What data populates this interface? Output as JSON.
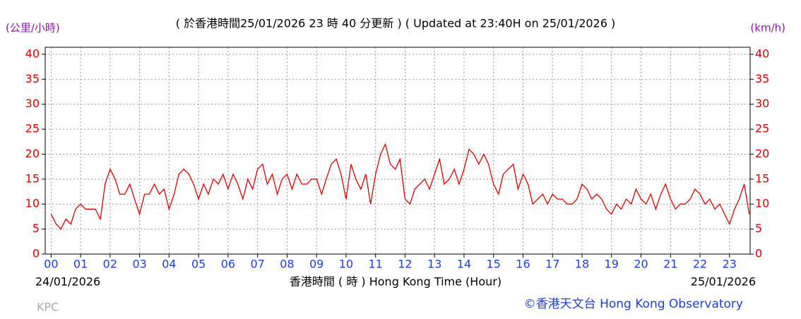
{
  "chart_data": {
    "type": "line",
    "title": "( 於香港時間25/01/2026 23 時 40 分更新 ) ( Updated at 23:40H on 25/01/2026 )",
    "y_label": "(公里/小時)",
    "y2_label": "(km/h)",
    "x_label": "香港時間 ( 時 )  Hong Kong Time (Hour)",
    "start_date": "24/01/2026",
    "end_date": "25/01/2026",
    "station": "KPC",
    "credit": "©香港天文台 Hong Kong Observatory",
    "color": "#dd0000",
    "grid": true,
    "xlim": [
      -0.2,
      23.7
    ],
    "ylim": [
      0,
      41.4
    ],
    "xticks": [
      {
        "value": 0,
        "label": "00"
      },
      {
        "value": 1,
        "label": "01"
      },
      {
        "value": 2,
        "label": "02"
      },
      {
        "value": 3,
        "label": "03"
      },
      {
        "value": 4,
        "label": "04"
      },
      {
        "value": 5,
        "label": "05"
      },
      {
        "value": 6,
        "label": "06"
      },
      {
        "value": 7,
        "label": "07"
      },
      {
        "value": 8,
        "label": "08"
      },
      {
        "value": 9,
        "label": "09"
      },
      {
        "value": 10,
        "label": "10"
      },
      {
        "value": 11,
        "label": "11"
      },
      {
        "value": 12,
        "label": "12"
      },
      {
        "value": 13,
        "label": "13"
      },
      {
        "value": 14,
        "label": "14"
      },
      {
        "value": 15,
        "label": "15"
      },
      {
        "value": 16,
        "label": "16"
      },
      {
        "value": 17,
        "label": "17"
      },
      {
        "value": 18,
        "label": "18"
      },
      {
        "value": 19,
        "label": "19"
      },
      {
        "value": 20,
        "label": "20"
      },
      {
        "value": 21,
        "label": "21"
      },
      {
        "value": 22,
        "label": "22"
      },
      {
        "value": 23,
        "label": "23"
      }
    ],
    "yticks": [
      0,
      5,
      10,
      15,
      20,
      25,
      30,
      35,
      40
    ],
    "x": [
      0,
      0.17,
      0.33,
      0.5,
      0.67,
      0.83,
      1,
      1.17,
      1.33,
      1.5,
      1.67,
      1.83,
      2,
      2.17,
      2.33,
      2.5,
      2.67,
      2.83,
      3,
      3.17,
      3.33,
      3.5,
      3.67,
      3.83,
      4,
      4.17,
      4.33,
      4.5,
      4.67,
      4.83,
      5,
      5.17,
      5.33,
      5.5,
      5.67,
      5.83,
      6,
      6.17,
      6.33,
      6.5,
      6.67,
      6.83,
      7,
      7.17,
      7.33,
      7.5,
      7.67,
      7.83,
      8,
      8.17,
      8.33,
      8.5,
      8.67,
      8.83,
      9,
      9.17,
      9.33,
      9.5,
      9.67,
      9.83,
      10,
      10.17,
      10.33,
      10.5,
      10.67,
      10.83,
      11,
      11.17,
      11.33,
      11.5,
      11.67,
      11.83,
      12,
      12.17,
      12.33,
      12.5,
      12.67,
      12.83,
      13,
      13.17,
      13.33,
      13.5,
      13.67,
      13.83,
      14,
      14.17,
      14.33,
      14.5,
      14.67,
      14.83,
      15,
      15.17,
      15.33,
      15.5,
      15.67,
      15.83,
      16,
      16.17,
      16.33,
      16.5,
      16.67,
      16.83,
      17,
      17.17,
      17.33,
      17.5,
      17.67,
      17.83,
      18,
      18.17,
      18.33,
      18.5,
      18.67,
      18.83,
      19,
      19.17,
      19.33,
      19.5,
      19.67,
      19.83,
      20,
      20.17,
      20.33,
      20.5,
      20.67,
      20.83,
      21,
      21.17,
      21.33,
      21.5,
      21.67,
      21.83,
      22,
      22.17,
      22.33,
      22.5,
      22.67,
      22.83,
      23,
      23.17,
      23.33,
      23.5,
      23.67
    ],
    "values": [
      8,
      6,
      5,
      7,
      6,
      9,
      10,
      9,
      9,
      9,
      7,
      14,
      17,
      15,
      12,
      12,
      14,
      11,
      8,
      12,
      12,
      14,
      12,
      13,
      9,
      12,
      16,
      17,
      16,
      14,
      11,
      14,
      12,
      15,
      14,
      16,
      13,
      16,
      14,
      11,
      15,
      13,
      17,
      18,
      14,
      16,
      12,
      15,
      16,
      13,
      16,
      14,
      14,
      15,
      15,
      12,
      15,
      18,
      19,
      16,
      11,
      18,
      15,
      13,
      16,
      10,
      16,
      20,
      22,
      18,
      17,
      19,
      11,
      10,
      13,
      14,
      15,
      13,
      16,
      19,
      14,
      15,
      17,
      14,
      17,
      21,
      20,
      18,
      20,
      18,
      14,
      12,
      16,
      17,
      18,
      13,
      16,
      14,
      10,
      11,
      12,
      10,
      12,
      11,
      11,
      10,
      10,
      11,
      14,
      13,
      11,
      12,
      11,
      9,
      8,
      10,
      9,
      11,
      10,
      13,
      11,
      10,
      12,
      9,
      12,
      14,
      11,
      9,
      10,
      10,
      11,
      13,
      12,
      10,
      11,
      9,
      10,
      8,
      6,
      9,
      11,
      14,
      8
    ]
  }
}
